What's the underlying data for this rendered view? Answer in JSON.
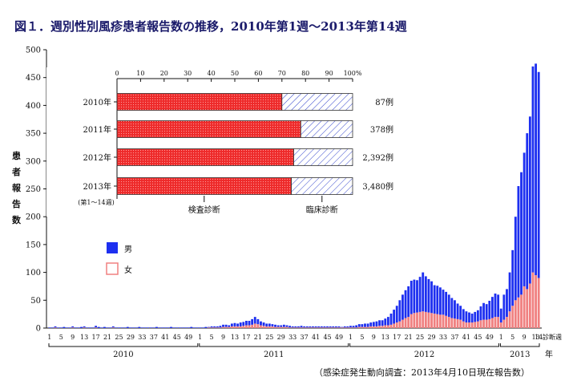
{
  "chart_data": [
    {
      "type": "bar",
      "subtype": "stacked",
      "title": "図１．週別性別風疹患者報告数の推移，2010年第1週〜2013年第14週",
      "ylabel": "患者報告数",
      "xlabel": "診断週",
      "x_unit": "年",
      "ylim": [
        0,
        500
      ],
      "yticks": [
        0,
        50,
        100,
        150,
        200,
        250,
        300,
        350,
        400,
        450,
        500
      ],
      "week_ticks_note": "1 5 9 13 ... 49",
      "years": [
        "2010",
        "2011",
        "2012",
        "2013"
      ],
      "weeks_per_year": [
        52,
        52,
        52,
        14
      ],
      "legend": [
        {
          "name": "男",
          "color": "#1d2ff0"
        },
        {
          "name": "女",
          "color": "#f08080"
        }
      ],
      "series": [
        {
          "name": "男",
          "color": "#1d2ff0",
          "values": [
            1,
            1,
            2,
            1,
            1,
            2,
            1,
            1,
            2,
            1,
            1,
            2,
            2,
            1,
            1,
            1,
            3,
            2,
            1,
            2,
            1,
            1,
            2,
            1,
            1,
            1,
            1,
            2,
            1,
            1,
            1,
            2,
            1,
            1,
            1,
            1,
            1,
            2,
            1,
            1,
            1,
            1,
            2,
            1,
            1,
            1,
            1,
            1,
            1,
            2,
            1,
            1,
            1,
            1,
            2,
            1,
            2,
            2,
            2,
            3,
            4,
            4,
            3,
            5,
            6,
            5,
            7,
            7,
            8,
            8,
            10,
            12,
            9,
            7,
            6,
            5,
            5,
            4,
            4,
            3,
            3,
            4,
            3,
            3,
            2,
            2,
            2,
            3,
            2,
            2,
            2,
            2,
            2,
            2,
            2,
            2,
            2,
            2,
            2,
            2,
            2,
            1,
            2,
            2,
            3,
            3,
            4,
            5,
            5,
            6,
            6,
            7,
            8,
            9,
            10,
            10,
            12,
            15,
            20,
            25,
            30,
            38,
            45,
            50,
            55,
            60,
            60,
            58,
            63,
            70,
            64,
            60,
            57,
            51,
            51,
            49,
            45,
            43,
            40,
            36,
            33,
            28,
            25,
            22,
            20,
            18,
            16,
            18,
            20,
            25,
            30,
            28,
            33,
            38,
            42,
            40,
            25,
            45,
            50,
            70,
            100,
            150,
            200,
            220,
            240,
            280,
            300,
            370,
            380,
            370
          ]
        },
        {
          "name": "女",
          "color": "#f08080",
          "values": [
            0,
            0,
            1,
            0,
            0,
            0,
            0,
            0,
            1,
            0,
            0,
            0,
            1,
            0,
            0,
            0,
            1,
            0,
            0,
            0,
            0,
            0,
            1,
            0,
            0,
            0,
            0,
            0,
            0,
            0,
            0,
            0,
            0,
            0,
            0,
            0,
            0,
            0,
            0,
            0,
            0,
            0,
            0,
            0,
            0,
            0,
            0,
            0,
            0,
            0,
            0,
            0,
            0,
            0,
            0,
            1,
            1,
            1,
            1,
            1,
            2,
            2,
            2,
            3,
            3,
            3,
            3,
            4,
            5,
            5,
            6,
            8,
            7,
            5,
            4,
            3,
            3,
            3,
            2,
            2,
            2,
            2,
            2,
            1,
            1,
            1,
            1,
            1,
            1,
            1,
            1,
            1,
            1,
            1,
            1,
            1,
            1,
            1,
            1,
            1,
            1,
            1,
            1,
            1,
            1,
            1,
            1,
            2,
            2,
            2,
            2,
            3,
            3,
            3,
            4,
            4,
            5,
            5,
            6,
            8,
            10,
            12,
            15,
            18,
            20,
            25,
            27,
            28,
            29,
            30,
            29,
            28,
            27,
            26,
            25,
            24,
            24,
            22,
            20,
            18,
            17,
            16,
            15,
            12,
            10,
            10,
            10,
            11,
            12,
            14,
            15,
            15,
            16,
            18,
            20,
            20,
            10,
            15,
            20,
            30,
            40,
            50,
            55,
            60,
            75,
            70,
            80,
            100,
            95,
            90
          ]
        }
      ]
    },
    {
      "type": "bar",
      "subtype": "stacked-percent-horizontal",
      "xlim": [
        0,
        100
      ],
      "xticks": [
        "0",
        "10",
        "20",
        "30",
        "40",
        "50",
        "60",
        "70",
        "80",
        "90",
        "100%"
      ],
      "categories": [
        "2010年",
        "2011年",
        "2012年",
        "2013年"
      ],
      "category_note": "(第1〜14週)",
      "counts": [
        "87例",
        "378例",
        "2,392例",
        "3,480例"
      ],
      "legend_labels": [
        "検査診断",
        "臨床診断"
      ],
      "series": [
        {
          "name": "検査診断",
          "color": "#f03030",
          "values": [
            70,
            78,
            75,
            74
          ]
        },
        {
          "name": "臨床診断",
          "color": "#3344cc",
          "values": [
            30,
            22,
            25,
            26
          ]
        }
      ]
    }
  ],
  "source_note": "（感染症発生動向調査：2013年4月10日現在報告数）"
}
